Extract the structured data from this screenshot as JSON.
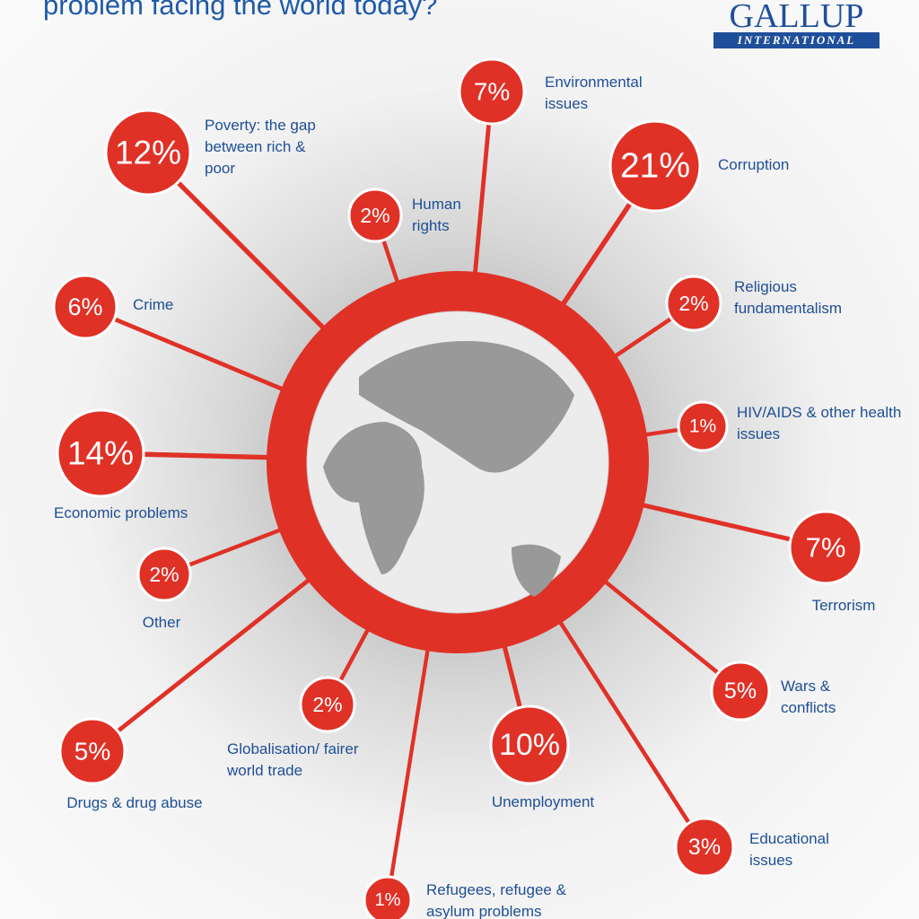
{
  "chart_data": {
    "type": "radial-bubble",
    "title": "problem facing the world today?",
    "logo": {
      "name": "GALLUP",
      "subtitle": "INTERNATIONAL"
    },
    "color": "#e03127",
    "categories": [
      "Poverty: the gap between rich & poor",
      "Environmental issues",
      "Human rights",
      "Corruption",
      "Religious fundamentalism",
      "HIV/AIDS & other health issues",
      "Crime",
      "Economic problems",
      "Other",
      "Terrorism",
      "Wars & conflicts",
      "Drugs & drug abuse",
      "Globalisation/ fairer world trade",
      "Unemployment",
      "Educational issues",
      "Refugees, refugee & asylum problems"
    ],
    "values": [
      12,
      7,
      2,
      21,
      2,
      1,
      6,
      14,
      2,
      7,
      5,
      5,
      2,
      10,
      3,
      1
    ],
    "value_labels": [
      "12%",
      "7%",
      "2%",
      "21%",
      "2%",
      "1%",
      "6%",
      "14%",
      "2%",
      "7%",
      "5%",
      "5%",
      "2%",
      "10%",
      "3%",
      "1%"
    ]
  }
}
